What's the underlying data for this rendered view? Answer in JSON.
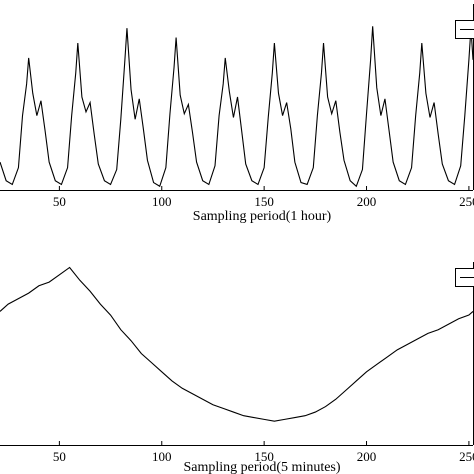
{
  "chart_data": [
    {
      "type": "line",
      "xlabel": "Sampling period(1 hour)",
      "color": "#000000",
      "xlim": [
        21,
        252
      ],
      "xticks": [
        50,
        100,
        150,
        200,
        250
      ],
      "ylim": [
        0,
        100
      ],
      "x": [
        21,
        24,
        27,
        30,
        32,
        34,
        35,
        37,
        39,
        41,
        43,
        45,
        48,
        51,
        54,
        56,
        58,
        59,
        61,
        63,
        65,
        67,
        69,
        72,
        75,
        78,
        80,
        82,
        83,
        85,
        87,
        89,
        91,
        93,
        96,
        99,
        102,
        104,
        106,
        107,
        109,
        111,
        113,
        115,
        117,
        120,
        123,
        126,
        128,
        130,
        131,
        133,
        135,
        137,
        139,
        141,
        144,
        147,
        150,
        152,
        154,
        155,
        157,
        159,
        161,
        163,
        165,
        168,
        171,
        174,
        176,
        178,
        179,
        181,
        183,
        185,
        187,
        189,
        192,
        195,
        198,
        200,
        202,
        203,
        205,
        207,
        209,
        211,
        213,
        216,
        219,
        222,
        224,
        226,
        227,
        229,
        231,
        233,
        235,
        237,
        240,
        243,
        246,
        248,
        250,
        251,
        252
      ],
      "values": [
        15,
        5,
        3,
        12,
        40,
        57,
        71,
        52,
        40,
        48,
        32,
        15,
        5,
        3,
        12,
        40,
        63,
        79,
        50,
        42,
        47,
        30,
        14,
        5,
        3,
        11,
        38,
        70,
        87,
        54,
        38,
        49,
        33,
        16,
        4,
        2,
        12,
        41,
        66,
        82,
        51,
        41,
        46,
        31,
        15,
        5,
        3,
        13,
        40,
        57,
        71,
        53,
        39,
        50,
        32,
        14,
        5,
        3,
        12,
        39,
        63,
        79,
        52,
        40,
        47,
        33,
        15,
        4,
        3,
        12,
        40,
        63,
        79,
        50,
        41,
        48,
        31,
        16,
        5,
        2,
        11,
        41,
        70,
        88,
        55,
        40,
        49,
        32,
        15,
        5,
        3,
        12,
        40,
        63,
        79,
        52,
        39,
        47,
        30,
        14,
        5,
        3,
        13,
        40,
        70,
        87,
        70
      ]
    },
    {
      "type": "line",
      "xlabel": "Sampling period(5 minutes)",
      "color": "#000000",
      "xlim": [
        21,
        252
      ],
      "xticks": [
        50,
        100,
        150,
        200,
        250
      ],
      "ylim": [
        0,
        100
      ],
      "x": [
        21,
        25,
        30,
        35,
        40,
        45,
        50,
        55,
        60,
        65,
        70,
        75,
        80,
        85,
        90,
        95,
        100,
        105,
        110,
        115,
        120,
        125,
        130,
        135,
        140,
        145,
        150,
        155,
        160,
        165,
        170,
        175,
        180,
        185,
        190,
        195,
        200,
        205,
        210,
        215,
        220,
        225,
        230,
        235,
        240,
        245,
        250,
        252
      ],
      "values": [
        73,
        77,
        80,
        83,
        87,
        89,
        93,
        97,
        90,
        84,
        77,
        71,
        63,
        57,
        50,
        45,
        40,
        35,
        31,
        28,
        25,
        22,
        20,
        18,
        16,
        15,
        14,
        13,
        14,
        15,
        16,
        18,
        21,
        25,
        30,
        35,
        40,
        44,
        48,
        52,
        55,
        58,
        61,
        63,
        66,
        69,
        71,
        73
      ]
    }
  ]
}
